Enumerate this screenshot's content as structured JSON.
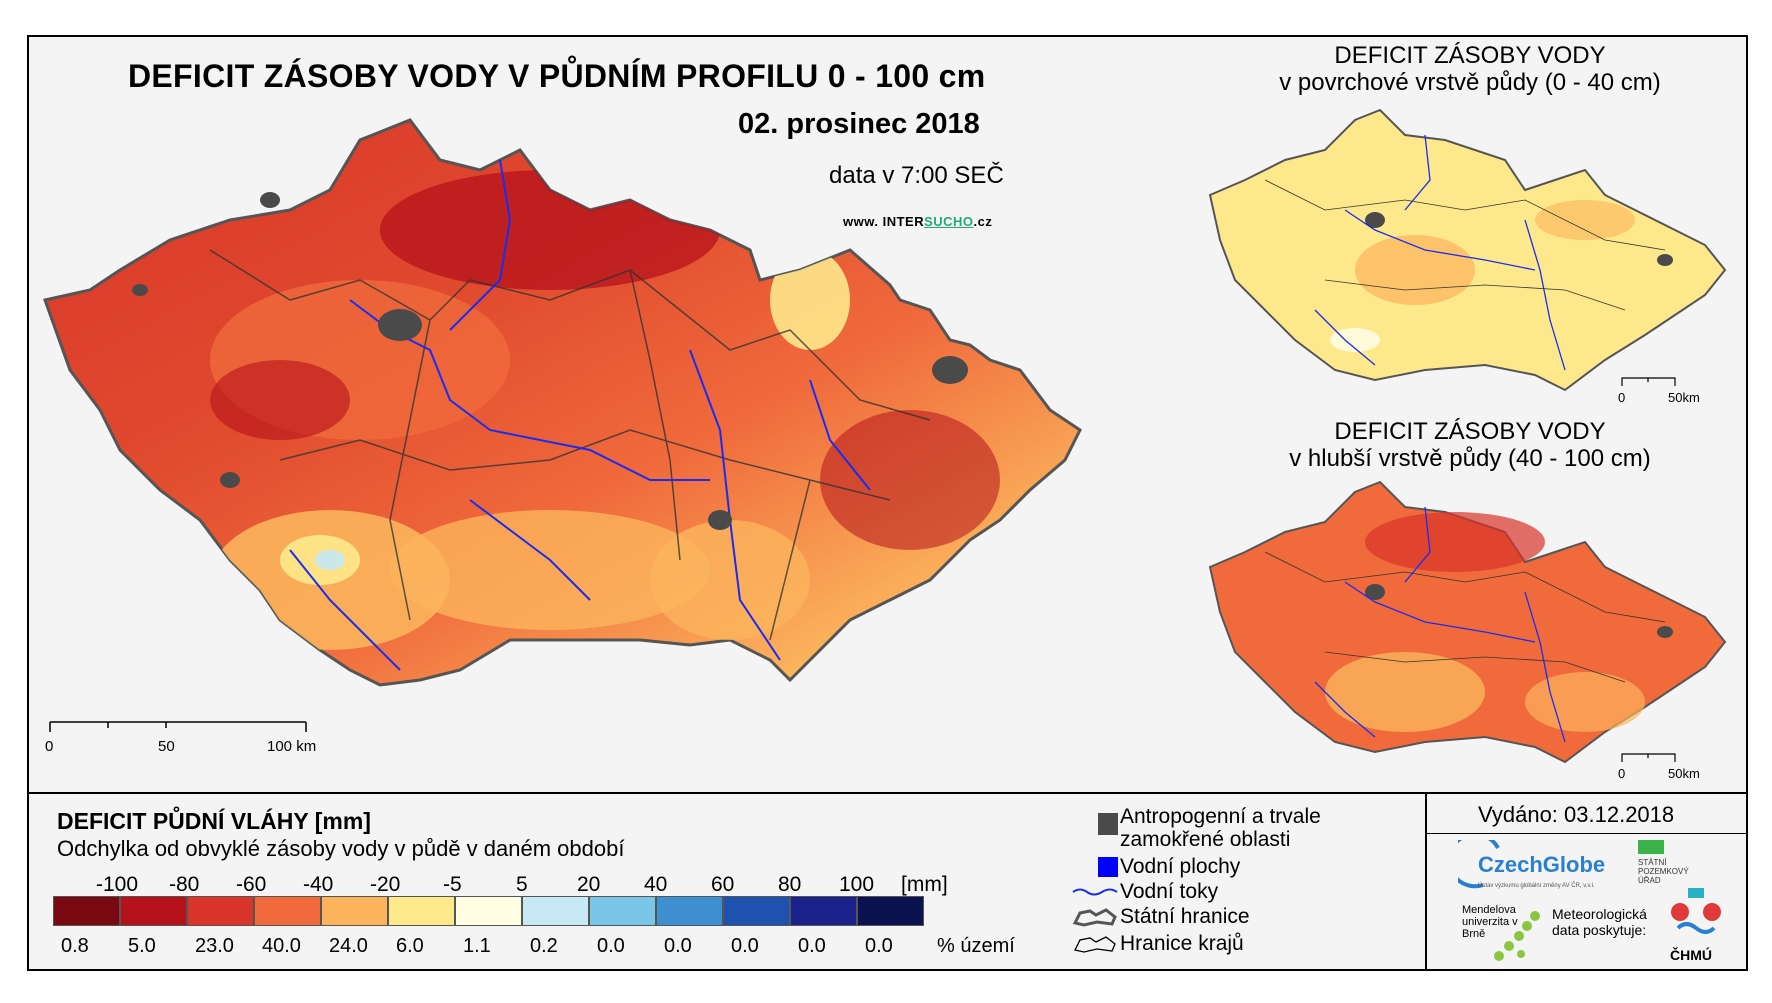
{
  "header": {
    "title": "DEFICIT ZÁSOBY VODY V PŮDNÍM PROFILU 0 - 100 cm",
    "date": "02. prosinec 2018",
    "data_time": "data v 7:00 SEČ",
    "www_prefix": "www. INTER",
    "www_mid": "SUCHO",
    "www_suffix": ".cz"
  },
  "main_map": {
    "scale_labels": [
      "0",
      "50",
      "100 km"
    ]
  },
  "side_maps": [
    {
      "title_line1": "DEFICIT ZÁSOBY VODY",
      "title_line2": "v povrchové vrstvě půdy (0 - 40 cm)",
      "scale_labels": [
        "0",
        "50km"
      ]
    },
    {
      "title_line1": "DEFICIT ZÁSOBY VODY",
      "title_line2": "v hlubší vrstvě půdy (40 - 100 cm)",
      "scale_labels": [
        "0",
        "50km"
      ]
    }
  ],
  "legend": {
    "title": "DEFICIT PŮDNÍ VLÁHY [mm]",
    "subtitle": "Odchylka od obvyklé zásoby vody v půdě v daném období",
    "unit": "[mm]",
    "percent_label": "% území",
    "breaks": [
      "-100",
      "-80",
      "-60",
      "-40",
      "-20",
      "-5",
      "5",
      "20",
      "40",
      "60",
      "80",
      "100"
    ],
    "bins": [
      {
        "color": "#7a0a12",
        "percent": "0.8"
      },
      {
        "color": "#b5121b",
        "percent": "5.0"
      },
      {
        "color": "#d9352a",
        "percent": "23.0"
      },
      {
        "color": "#f06a3c",
        "percent": "40.0"
      },
      {
        "color": "#fbb45c",
        "percent": "24.0"
      },
      {
        "color": "#fde88c",
        "percent": "6.0"
      },
      {
        "color": "#fffde2",
        "percent": "1.1"
      },
      {
        "color": "#c7e8f5",
        "percent": "0.2"
      },
      {
        "color": "#79c6e6",
        "percent": "0.0"
      },
      {
        "color": "#3d8fd0",
        "percent": "0.0"
      },
      {
        "color": "#1f52b0",
        "percent": "0.0"
      },
      {
        "color": "#1c228c",
        "percent": "0.0"
      },
      {
        "color": "#0b1250",
        "percent": "0.0"
      }
    ],
    "keys": [
      {
        "icon": "grey-square-icon",
        "line1": "Antropogenní a trvale",
        "line2": "zamokřené oblasti"
      },
      {
        "icon": "blue-square-icon",
        "line1": "Vodní plochy",
        "line2": ""
      },
      {
        "icon": "river-line-icon",
        "line1": "Vodní toky",
        "line2": ""
      },
      {
        "icon": "state-border-icon",
        "line1": "Státní hranice",
        "line2": ""
      },
      {
        "icon": "region-border-icon",
        "line1": "Hranice krajů",
        "line2": ""
      }
    ]
  },
  "footer": {
    "issued": "Vydáno: 03.12.2018",
    "czechglobe": "CzechGlobe",
    "czechglobe_sub": "Ústav výzkumu globální změny AV ČR, v.v.i.",
    "spu": "STÁTNÍ POZEMKOVÝ ÚŘAD",
    "mendel": "Mendelova univerzita v Brně",
    "meteo": "Meteorologická data poskytuje:",
    "chmu": "ČHMÚ"
  },
  "colors": {
    "river": "#1a2cf0",
    "border": "#333333",
    "urban": "#4a4a4a"
  }
}
